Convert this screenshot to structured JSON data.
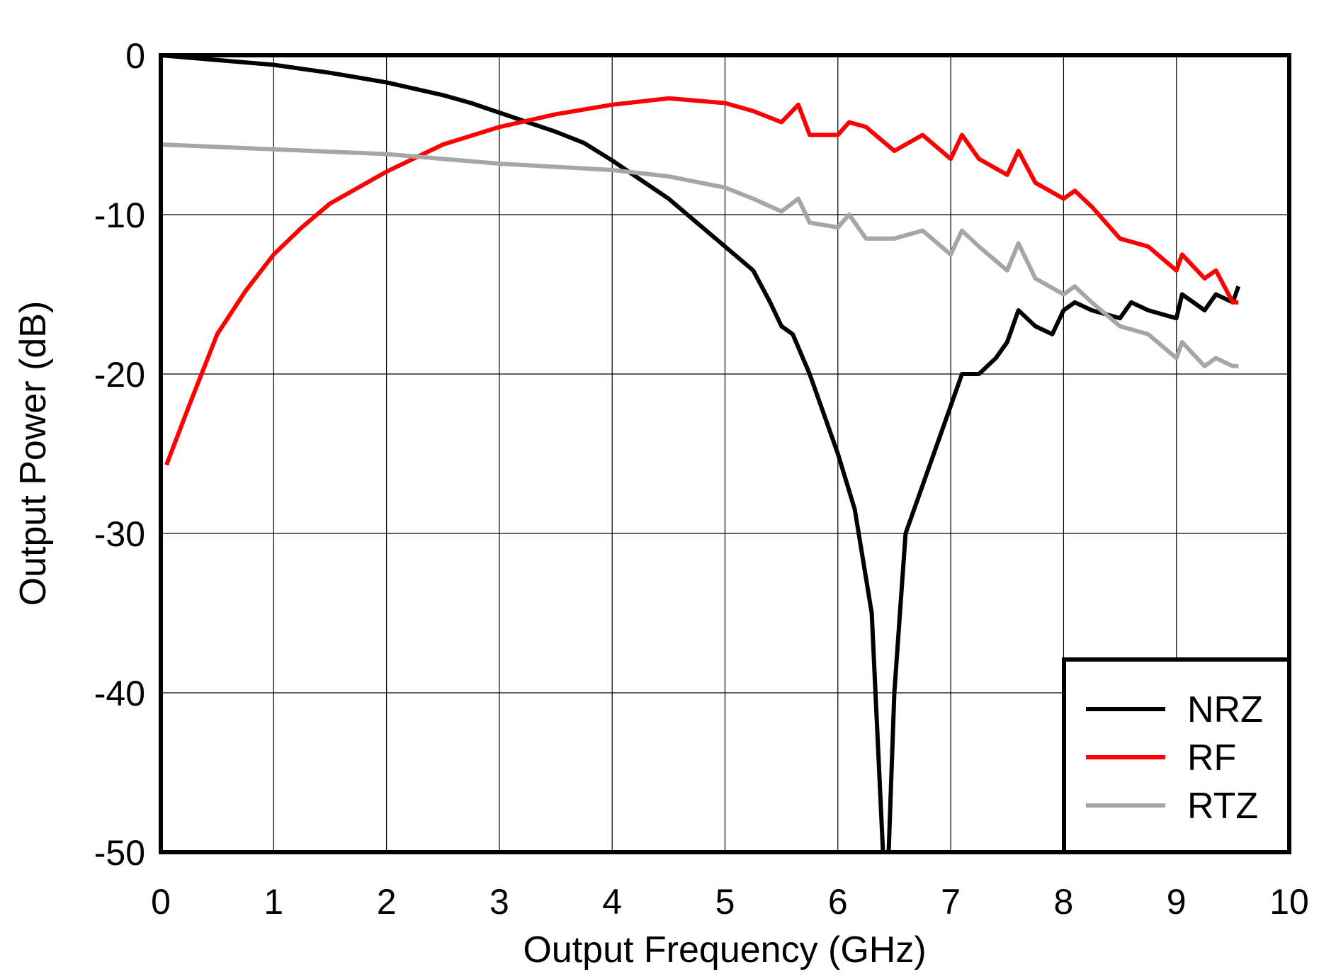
{
  "chart_data": {
    "type": "line",
    "title": "",
    "xlabel": "Output Frequency (GHz)",
    "ylabel": "Output Power (dB)",
    "xlim": [
      0,
      10
    ],
    "ylim": [
      -50,
      0
    ],
    "xticks": [
      "0",
      "1",
      "2",
      "3",
      "4",
      "5",
      "6",
      "7",
      "8",
      "9",
      "10"
    ],
    "yticks": [
      "0",
      "-10",
      "-20",
      "-30",
      "-40",
      "-50"
    ],
    "grid": true,
    "legend": "bottom-right",
    "series": [
      {
        "name": "NRZ",
        "color": "#000000",
        "x": [
          0,
          0.5,
          1,
          1.5,
          2,
          2.5,
          2.75,
          3,
          3.25,
          3.5,
          3.75,
          4,
          4.25,
          4.5,
          4.75,
          5,
          5.25,
          5.4,
          5.5,
          5.6,
          5.75,
          6,
          6.15,
          6.3,
          6.4,
          6.45,
          6.5,
          6.6,
          6.75,
          7,
          7.1,
          7.25,
          7.4,
          7.5,
          7.6,
          7.75,
          7.9,
          8,
          8.1,
          8.25,
          8.5,
          8.6,
          8.75,
          9,
          9.05,
          9.25,
          9.35,
          9.5,
          9.55
        ],
        "y": [
          0,
          -0.3,
          -0.6,
          -1.1,
          -1.7,
          -2.5,
          -3,
          -3.6,
          -4.2,
          -4.8,
          -5.5,
          -6.6,
          -7.8,
          -9,
          -10.5,
          -12,
          -13.5,
          -15.5,
          -17,
          -17.5,
          -20,
          -25,
          -28.5,
          -35,
          -50,
          -50,
          -40,
          -30,
          -27,
          -22,
          -20,
          -20,
          -19,
          -18,
          -16,
          -17,
          -17.5,
          -16,
          -15.5,
          -16,
          -16.5,
          -15.5,
          -16,
          -16.5,
          -15,
          -16,
          -15,
          -15.5,
          -14.5
        ]
      },
      {
        "name": "RF",
        "color": "#ff0000",
        "x": [
          0.05,
          0.25,
          0.5,
          0.75,
          1,
          1.25,
          1.5,
          2,
          2.5,
          3,
          3.5,
          4,
          4.5,
          5,
          5.25,
          5.5,
          5.65,
          5.75,
          6,
          6.1,
          6.25,
          6.5,
          6.75,
          7,
          7.1,
          7.25,
          7.5,
          7.6,
          7.75,
          8,
          8.1,
          8.25,
          8.5,
          8.75,
          9,
          9.05,
          9.25,
          9.35,
          9.5,
          9.55
        ],
        "y": [
          -25.7,
          -22,
          -17.5,
          -14.8,
          -12.5,
          -10.8,
          -9.3,
          -7.3,
          -5.6,
          -4.5,
          -3.7,
          -3.1,
          -2.7,
          -3,
          -3.5,
          -4.2,
          -3.1,
          -5,
          -5,
          -4.2,
          -4.5,
          -6,
          -5,
          -6.5,
          -5,
          -6.5,
          -7.5,
          -6,
          -8,
          -9,
          -8.5,
          -9.5,
          -11.5,
          -12,
          -13.5,
          -12.5,
          -14,
          -13.5,
          -15.5,
          -15.5
        ]
      },
      {
        "name": "RTZ",
        "color": "#a6a6a6",
        "x": [
          0,
          1,
          2,
          2.5,
          3,
          3.5,
          4,
          4.5,
          5,
          5.25,
          5.5,
          5.65,
          5.75,
          6,
          6.1,
          6.25,
          6.5,
          6.75,
          7,
          7.1,
          7.25,
          7.5,
          7.6,
          7.75,
          8,
          8.1,
          8.25,
          8.5,
          8.75,
          9,
          9.05,
          9.25,
          9.35,
          9.5,
          9.55
        ],
        "y": [
          -5.6,
          -5.9,
          -6.2,
          -6.5,
          -6.8,
          -7,
          -7.2,
          -7.6,
          -8.3,
          -9,
          -9.8,
          -9,
          -10.5,
          -10.8,
          -10,
          -11.5,
          -11.5,
          -11,
          -12.5,
          -11,
          -12,
          -13.5,
          -11.8,
          -14,
          -15,
          -14.5,
          -15.5,
          -17,
          -17.5,
          -19,
          -18,
          -19.5,
          -19,
          -19.5,
          -19.5
        ]
      }
    ]
  }
}
